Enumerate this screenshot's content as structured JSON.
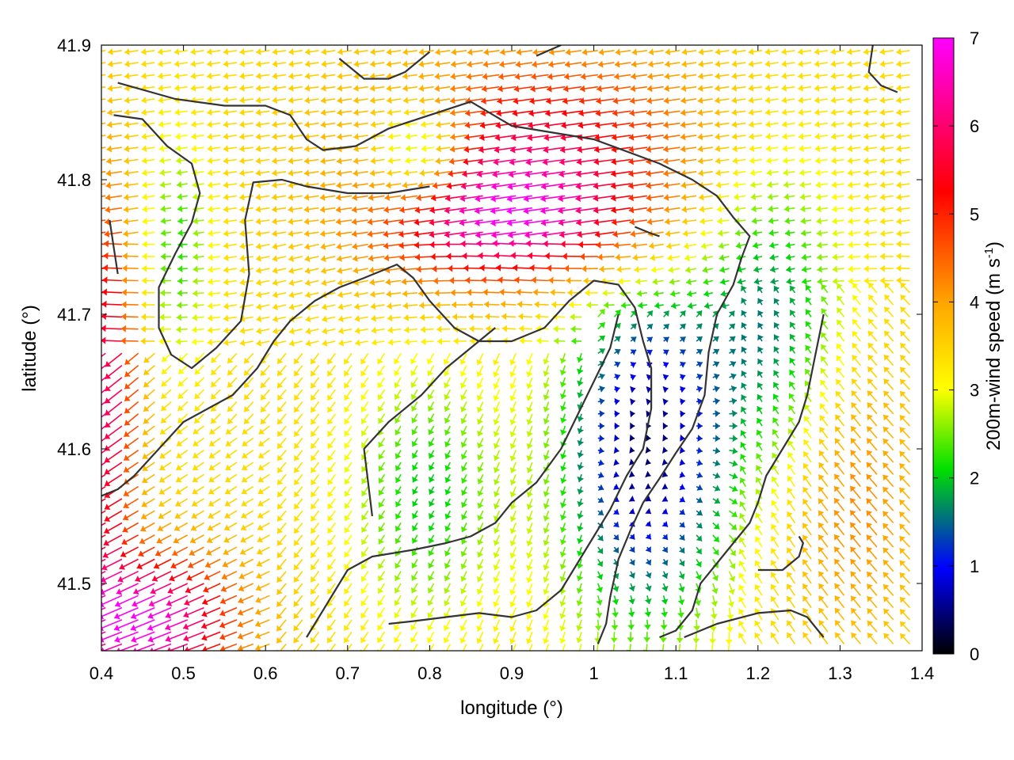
{
  "chart_data": {
    "type": "vector-field",
    "xlabel": "longitude (°)",
    "ylabel": "latitude (°)",
    "xlim": [
      0.4,
      1.4
    ],
    "ylim": [
      41.45,
      41.9
    ],
    "xticks": [
      "0.4",
      "0.5",
      "0.6",
      "0.7",
      "0.8",
      "0.9",
      "1",
      "1.1",
      "1.2",
      "1.3",
      "1.4"
    ],
    "yticks": [
      "41.5",
      "41.6",
      "41.7",
      "41.8",
      "41.9"
    ],
    "colorbar": {
      "label_main": "200m-wind speed (m s",
      "label_sup": "-1",
      "label_close": ")",
      "range": [
        0,
        7
      ],
      "ticks": [
        "0",
        "1",
        "2",
        "3",
        "4",
        "5",
        "6",
        "7"
      ],
      "palette": [
        "#000000",
        "#0000ff",
        "#00e000",
        "#ffff00",
        "#ffa500",
        "#ff0000",
        "#ff00ff"
      ]
    },
    "contours": [
      [
        [
          0.42,
          41.872
        ],
        [
          0.49,
          41.86
        ],
        [
          0.55,
          41.855
        ],
        [
          0.6,
          41.855
        ],
        [
          0.63,
          41.848
        ],
        [
          0.65,
          41.83
        ],
        [
          0.67,
          41.822
        ],
        [
          0.71,
          41.825
        ],
        [
          0.75,
          41.838
        ],
        [
          0.8,
          41.848
        ],
        [
          0.85,
          41.858
        ],
        [
          0.9,
          41.84
        ],
        [
          0.95,
          41.835
        ],
        [
          1.0,
          41.83
        ],
        [
          1.08,
          41.812
        ],
        [
          1.12,
          41.8
        ],
        [
          1.15,
          41.788
        ],
        [
          1.17,
          41.772
        ],
        [
          1.19,
          41.758
        ],
        [
          1.18,
          41.742
        ],
        [
          1.17,
          41.722
        ],
        [
          1.15,
          41.7
        ],
        [
          1.14,
          41.672
        ],
        [
          1.135,
          41.64
        ],
        [
          1.12,
          41.615
        ],
        [
          1.1,
          41.597
        ],
        [
          1.08,
          41.578
        ],
        [
          1.06,
          41.56
        ],
        [
          1.045,
          41.54
        ],
        [
          1.03,
          41.518
        ],
        [
          1.02,
          41.49
        ],
        [
          1.015,
          41.47
        ],
        [
          1.005,
          41.455
        ]
      ],
      [
        [
          0.4,
          41.565
        ],
        [
          0.42,
          41.57
        ],
        [
          0.44,
          41.58
        ],
        [
          0.47,
          41.6
        ],
        [
          0.5,
          41.62
        ],
        [
          0.53,
          41.63
        ],
        [
          0.56,
          41.64
        ],
        [
          0.59,
          41.66
        ],
        [
          0.61,
          41.68
        ],
        [
          0.63,
          41.695
        ],
        [
          0.66,
          41.71
        ],
        [
          0.69,
          41.72
        ],
        [
          0.72,
          41.727
        ],
        [
          0.76,
          41.737
        ],
        [
          0.78,
          41.727
        ],
        [
          0.8,
          41.71
        ],
        [
          0.83,
          41.69
        ],
        [
          0.86,
          41.68
        ],
        [
          0.9,
          41.68
        ],
        [
          0.94,
          41.69
        ],
        [
          0.97,
          41.71
        ],
        [
          1.0,
          41.725
        ],
        [
          1.03,
          41.722
        ],
        [
          1.05,
          41.705
        ],
        [
          1.06,
          41.68
        ],
        [
          1.07,
          41.66
        ],
        [
          1.07,
          41.63
        ],
        [
          1.06,
          41.6
        ],
        [
          1.04,
          41.58
        ],
        [
          1.02,
          41.555
        ],
        [
          1.0,
          41.535
        ],
        [
          0.98,
          41.515
        ],
        [
          0.96,
          41.495
        ],
        [
          0.93,
          41.48
        ],
        [
          0.9,
          41.475
        ],
        [
          0.86,
          41.478
        ],
        [
          0.82,
          41.475
        ],
        [
          0.78,
          41.472
        ],
        [
          0.75,
          41.47
        ]
      ],
      [
        [
          0.415,
          41.848
        ],
        [
          0.45,
          41.845
        ],
        [
          0.48,
          41.825
        ],
        [
          0.51,
          41.812
        ],
        [
          0.52,
          41.79
        ],
        [
          0.51,
          41.768
        ],
        [
          0.49,
          41.745
        ],
        [
          0.47,
          41.72
        ],
        [
          0.47,
          41.69
        ],
        [
          0.485,
          41.67
        ],
        [
          0.51,
          41.66
        ],
        [
          0.54,
          41.675
        ],
        [
          0.57,
          41.695
        ],
        [
          0.58,
          41.73
        ],
        [
          0.575,
          41.77
        ],
        [
          0.585,
          41.798
        ],
        [
          0.62,
          41.8
        ],
        [
          0.65,
          41.795
        ],
        [
          0.7,
          41.79
        ],
        [
          0.75,
          41.79
        ],
        [
          0.8,
          41.795
        ]
      ],
      [
        [
          0.65,
          41.46
        ],
        [
          0.68,
          41.49
        ],
        [
          0.7,
          41.51
        ],
        [
          0.73,
          41.52
        ],
        [
          0.78,
          41.525
        ],
        [
          0.82,
          41.53
        ],
        [
          0.85,
          41.535
        ],
        [
          0.88,
          41.545
        ],
        [
          0.9,
          41.56
        ],
        [
          0.93,
          41.575
        ],
        [
          0.96,
          41.6
        ],
        [
          0.98,
          41.625
        ],
        [
          1.0,
          41.65
        ],
        [
          1.02,
          41.675
        ],
        [
          1.03,
          41.7
        ]
      ],
      [
        [
          0.73,
          41.55
        ],
        [
          0.72,
          41.6
        ],
        [
          0.75,
          41.62
        ],
        [
          0.79,
          41.64
        ],
        [
          0.82,
          41.66
        ],
        [
          0.85,
          41.675
        ],
        [
          0.88,
          41.69
        ]
      ],
      [
        [
          1.28,
          41.7
        ],
        [
          1.27,
          41.67
        ],
        [
          1.26,
          41.64
        ],
        [
          1.25,
          41.62
        ],
        [
          1.23,
          41.6
        ],
        [
          1.21,
          41.58
        ],
        [
          1.2,
          41.56
        ],
        [
          1.19,
          41.545
        ],
        [
          1.17,
          41.53
        ],
        [
          1.15,
          41.515
        ],
        [
          1.13,
          41.5
        ],
        [
          1.12,
          41.48
        ],
        [
          1.1,
          41.465
        ],
        [
          1.08,
          41.46
        ]
      ],
      [
        [
          1.11,
          41.46
        ],
        [
          1.15,
          41.47
        ],
        [
          1.2,
          41.478
        ],
        [
          1.24,
          41.48
        ],
        [
          1.26,
          41.475
        ],
        [
          1.28,
          41.46
        ]
      ],
      [
        [
          1.2,
          41.51
        ],
        [
          1.23,
          41.51
        ],
        [
          1.25,
          41.52
        ],
        [
          1.255,
          41.53
        ],
        [
          1.25,
          41.535
        ]
      ],
      [
        [
          0.69,
          41.89
        ],
        [
          0.72,
          41.875
        ],
        [
          0.75,
          41.875
        ],
        [
          0.77,
          41.88
        ],
        [
          0.8,
          41.895
        ]
      ],
      [
        [
          0.93,
          41.892
        ],
        [
          0.96,
          41.9
        ]
      ],
      [
        [
          1.34,
          41.9
        ],
        [
          1.335,
          41.88
        ],
        [
          1.35,
          41.87
        ],
        [
          1.37,
          41.865
        ]
      ],
      [
        [
          0.41,
          41.77
        ],
        [
          0.415,
          41.75
        ],
        [
          0.42,
          41.73
        ]
      ],
      [
        [
          1.05,
          41.765
        ],
        [
          1.07,
          41.76
        ],
        [
          1.08,
          41.758
        ]
      ]
    ]
  }
}
